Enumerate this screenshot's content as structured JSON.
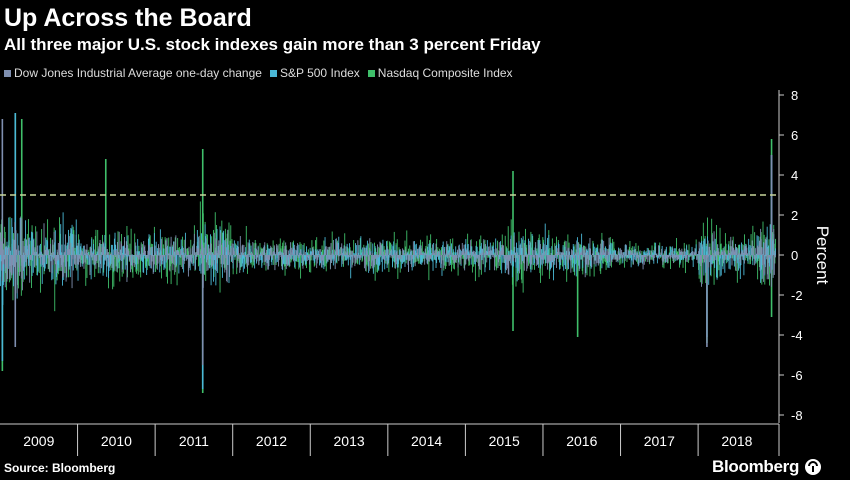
{
  "title": "Up Across the Board",
  "subtitle": "All three major U.S. stock indexes gain more than 3 percent Friday",
  "source": "Source: Bloomberg",
  "brand": "Bloomberg",
  "legend": [
    {
      "label": "Dow Jones Industrial Average one-day change",
      "color": "#7f8fb0"
    },
    {
      "label": "S&P 500 Index",
      "color": "#4bb8d6"
    },
    {
      "label": "Nasdaq Composite Index",
      "color": "#3fbf6a"
    }
  ],
  "chart_data": {
    "type": "bar",
    "ylabel": "Percent",
    "ylim": [
      -8,
      8
    ],
    "yticks": [
      8,
      6,
      4,
      2,
      0,
      -2,
      -4,
      -6,
      -8
    ],
    "x_range": [
      "2009-01",
      "2018-12"
    ],
    "x_tick_labels": [
      "2009",
      "2010",
      "2011",
      "2012",
      "2013",
      "2014",
      "2015",
      "2016",
      "2017",
      "2018"
    ],
    "reference_line": {
      "y": 3,
      "style": "dashed"
    },
    "grid": false,
    "legend_position": "top-left",
    "series": [
      {
        "name": "Dow Jones Industrial Average one-day change",
        "color": "#7f8fb0",
        "notable_points": [
          {
            "x": "2009-01",
            "y": 6.8
          },
          {
            "x": "2009-03",
            "y": -4.6
          },
          {
            "x": "2011-08",
            "y": -5.5
          },
          {
            "x": "2018-02",
            "y": -4.6
          },
          {
            "x": "2018-12",
            "y": 5.0
          }
        ]
      },
      {
        "name": "S&P 500 Index",
        "color": "#4bb8d6",
        "notable_points": [
          {
            "x": "2009-03",
            "y": 7.1
          },
          {
            "x": "2009-01",
            "y": -5.3
          },
          {
            "x": "2011-08",
            "y": -6.7
          },
          {
            "x": "2018-02",
            "y": -4.1
          },
          {
            "x": "2018-12",
            "y": 5.0
          }
        ]
      },
      {
        "name": "Nasdaq Composite Index",
        "color": "#3fbf6a",
        "notable_points": [
          {
            "x": "2009-01",
            "y": -5.8
          },
          {
            "x": "2009-03",
            "y": 7.1
          },
          {
            "x": "2009-04",
            "y": 6.8
          },
          {
            "x": "2010-05",
            "y": 4.8
          },
          {
            "x": "2011-08",
            "y": 5.3
          },
          {
            "x": "2011-08",
            "y": -6.9
          },
          {
            "x": "2015-08",
            "y": 4.2
          },
          {
            "x": "2015-08",
            "y": -3.8
          },
          {
            "x": "2016-06",
            "y": -4.1
          },
          {
            "x": "2018-02",
            "y": -4.4
          },
          {
            "x": "2018-12",
            "y": 5.8
          },
          {
            "x": "2018-12",
            "y": -3.1
          }
        ]
      }
    ]
  }
}
